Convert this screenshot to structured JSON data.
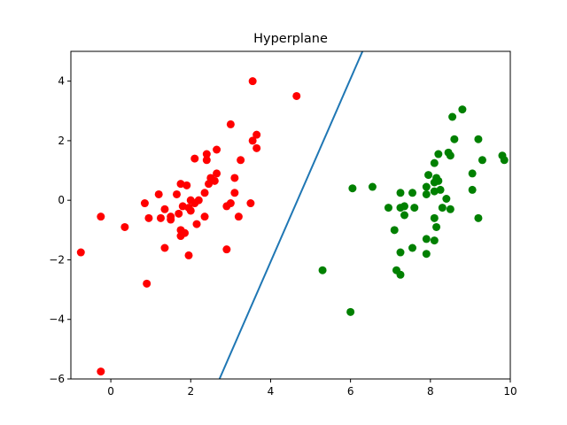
{
  "chart_data": {
    "type": "scatter",
    "title": "Hyperplane",
    "xlabel": "",
    "ylabel": "",
    "xlim": [
      -1,
      10
    ],
    "ylim": [
      -6,
      5
    ],
    "xticks": [
      0,
      2,
      4,
      6,
      8,
      10
    ],
    "yticks": [
      -6,
      -4,
      -2,
      0,
      2,
      4
    ],
    "grid": false,
    "series": [
      {
        "color": "#ff0000",
        "points": [
          [
            3.55,
            4.0
          ],
          [
            4.65,
            3.5
          ],
          [
            3.0,
            2.55
          ],
          [
            3.65,
            2.2
          ],
          [
            3.55,
            2.0
          ],
          [
            3.65,
            1.75
          ],
          [
            2.65,
            1.7
          ],
          [
            2.4,
            1.55
          ],
          [
            2.1,
            1.4
          ],
          [
            2.4,
            1.35
          ],
          [
            3.25,
            1.35
          ],
          [
            2.65,
            0.9
          ],
          [
            2.5,
            0.75
          ],
          [
            3.1,
            0.75
          ],
          [
            2.6,
            0.65
          ],
          [
            2.45,
            0.55
          ],
          [
            1.75,
            0.55
          ],
          [
            1.9,
            0.5
          ],
          [
            1.2,
            0.2
          ],
          [
            1.65,
            0.2
          ],
          [
            2.35,
            0.25
          ],
          [
            3.1,
            0.25
          ],
          [
            2.0,
            0.0
          ],
          [
            2.2,
            0.0
          ],
          [
            2.1,
            -0.1
          ],
          [
            0.85,
            -0.1
          ],
          [
            1.8,
            -0.2
          ],
          [
            1.35,
            -0.3
          ],
          [
            1.95,
            -0.25
          ],
          [
            3.0,
            -0.1
          ],
          [
            2.9,
            -0.2
          ],
          [
            3.5,
            -0.1
          ],
          [
            1.7,
            -0.45
          ],
          [
            2.0,
            -0.35
          ],
          [
            1.5,
            -0.55
          ],
          [
            0.95,
            -0.6
          ],
          [
            1.25,
            -0.6
          ],
          [
            2.35,
            -0.55
          ],
          [
            1.5,
            -0.65
          ],
          [
            3.2,
            -0.55
          ],
          [
            -0.25,
            -0.55
          ],
          [
            2.15,
            -0.8
          ],
          [
            0.35,
            -0.9
          ],
          [
            1.75,
            -1.0
          ],
          [
            1.85,
            -1.1
          ],
          [
            1.75,
            -1.2
          ],
          [
            1.35,
            -1.6
          ],
          [
            2.9,
            -1.65
          ],
          [
            -0.75,
            -1.75
          ],
          [
            1.95,
            -1.85
          ],
          [
            0.9,
            -2.8
          ],
          [
            -0.25,
            -5.75
          ]
        ]
      },
      {
        "color": "#008000",
        "points": [
          [
            8.8,
            3.05
          ],
          [
            8.55,
            2.8
          ],
          [
            8.6,
            2.05
          ],
          [
            9.2,
            2.05
          ],
          [
            8.2,
            1.55
          ],
          [
            8.45,
            1.6
          ],
          [
            8.5,
            1.5
          ],
          [
            9.8,
            1.5
          ],
          [
            9.85,
            1.35
          ],
          [
            9.3,
            1.35
          ],
          [
            8.1,
            1.25
          ],
          [
            9.05,
            0.9
          ],
          [
            7.95,
            0.85
          ],
          [
            8.15,
            0.75
          ],
          [
            8.2,
            0.65
          ],
          [
            8.1,
            0.6
          ],
          [
            7.9,
            0.45
          ],
          [
            6.05,
            0.4
          ],
          [
            6.55,
            0.45
          ],
          [
            8.1,
            0.3
          ],
          [
            8.25,
            0.35
          ],
          [
            9.05,
            0.35
          ],
          [
            7.25,
            0.25
          ],
          [
            7.55,
            0.25
          ],
          [
            7.9,
            0.2
          ],
          [
            8.4,
            0.05
          ],
          [
            7.35,
            -0.2
          ],
          [
            7.25,
            -0.25
          ],
          [
            7.6,
            -0.25
          ],
          [
            8.3,
            -0.25
          ],
          [
            8.5,
            -0.3
          ],
          [
            6.95,
            -0.25
          ],
          [
            7.35,
            -0.5
          ],
          [
            8.1,
            -0.6
          ],
          [
            9.2,
            -0.6
          ],
          [
            8.15,
            -0.9
          ],
          [
            7.1,
            -1.0
          ],
          [
            7.9,
            -1.3
          ],
          [
            8.1,
            -1.35
          ],
          [
            7.55,
            -1.6
          ],
          [
            7.25,
            -1.75
          ],
          [
            7.9,
            -1.8
          ],
          [
            7.15,
            -2.35
          ],
          [
            7.25,
            -2.5
          ],
          [
            5.3,
            -2.35
          ],
          [
            6.0,
            -3.75
          ]
        ]
      }
    ],
    "lines": [
      {
        "color": "#1f77b4",
        "x": [
          2.72,
          6.3
        ],
        "y": [
          -6,
          5
        ]
      }
    ]
  }
}
